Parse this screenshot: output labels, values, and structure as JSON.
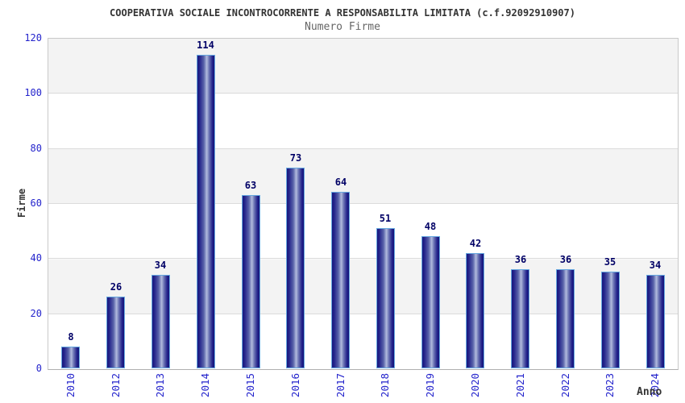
{
  "header": {
    "title": "COOPERATIVA SOCIALE INCONTROCORRENTE A RESPONSABILITA LIMITATA (c.f.92092910907)",
    "subtitle": "Numero Firme"
  },
  "chart_data": {
    "type": "bar",
    "title": "COOPERATIVA SOCIALE INCONTROCORRENTE A RESPONSABILITA LIMITATA (c.f.92092910907)",
    "subtitle": "Numero Firme",
    "xlabel": "Anno",
    "ylabel": "Firme",
    "categories": [
      "2010",
      "2012",
      "2013",
      "2014",
      "2015",
      "2016",
      "2017",
      "2018",
      "2019",
      "2020",
      "2021",
      "2022",
      "2023",
      "2024"
    ],
    "values": [
      8,
      26,
      34,
      114,
      63,
      73,
      64,
      51,
      48,
      42,
      36,
      36,
      35,
      34
    ],
    "ylim": [
      0,
      120
    ],
    "yticks": [
      0,
      20,
      40,
      60,
      80,
      100,
      120
    ],
    "grid": true,
    "legend": "none",
    "band_alternating": true,
    "colors": {
      "bar_edge_dark": "#18187e",
      "bar_center_light": "#b2bbde",
      "bar_border": "#66a8e0",
      "axis_tick_label": "#2424cc",
      "value_label": "#000066",
      "title": "#333333",
      "subtitle": "#666666",
      "band_gray": "#f3f3f3",
      "gridline": "#dcdcdc",
      "plot_border": "#c9c9c9"
    }
  }
}
